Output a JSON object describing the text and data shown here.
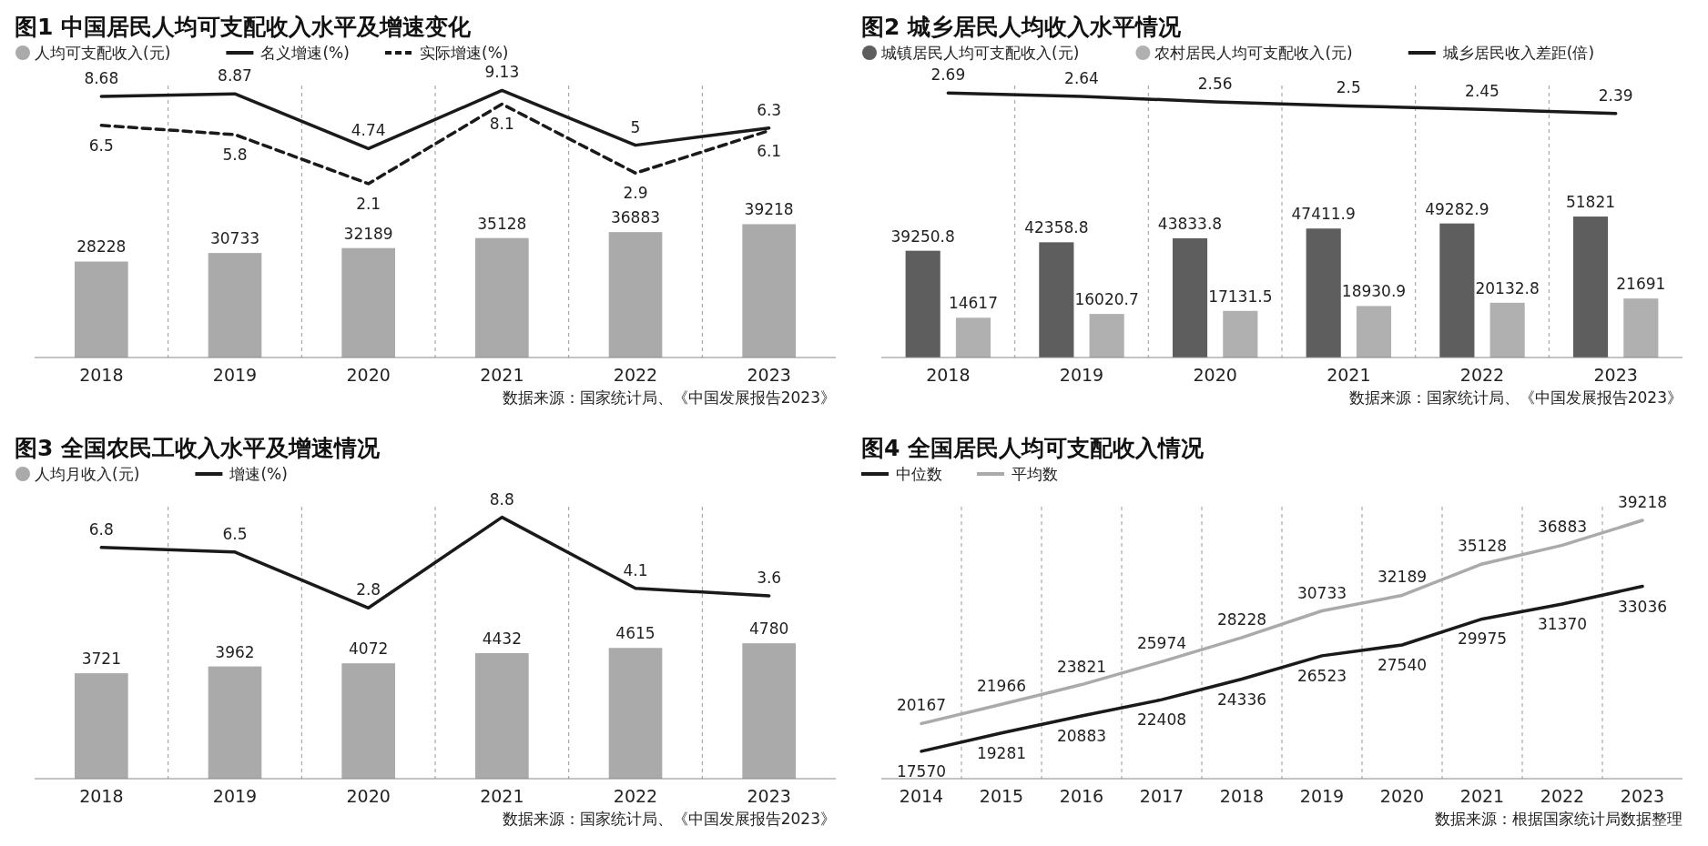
{
  "chart_data": [
    {
      "type": "bar",
      "title": "图1 中国居民人均可支配收入水平及增速变化",
      "categories": [
        "2018",
        "2019",
        "2020",
        "2021",
        "2022",
        "2023"
      ],
      "series": [
        {
          "name": "人均可支配收入(元)",
          "type": "bar",
          "color": "#aaaaaa",
          "values": [
            28228,
            30733,
            32189,
            35128,
            36883,
            39218
          ]
        },
        {
          "name": "名义增速(%)",
          "type": "line",
          "axis": "y2",
          "color": "#1a1a1a",
          "line_style": "solid",
          "values": [
            8.68,
            8.87,
            4.74,
            9.13,
            5,
            6.3
          ]
        },
        {
          "name": "实际增速(%)",
          "type": "line",
          "axis": "y2",
          "color": "#1a1a1a",
          "line_style": "dashed",
          "values": [
            6.5,
            5.8,
            2.1,
            8.1,
            2.9,
            6.1
          ]
        }
      ],
      "ylim": [
        0,
        80000
      ],
      "y2lim": [
        -11,
        9.5
      ],
      "tick_labels": "x",
      "data_labels": true,
      "grid": "x",
      "legend": "top left",
      "marker": "none",
      "annotations": [
        "数据来源：国家统计局、《中国发展报告2023》"
      ]
    },
    {
      "type": "bar",
      "title": "图2 城乡居民人均收入水平情况",
      "categories": [
        "2018",
        "2019",
        "2020",
        "2021",
        "2022",
        "2023"
      ],
      "series": [
        {
          "name": "城镇居民人均可支配收入(元)",
          "type": "bar",
          "color": "#5e5e5e",
          "values": [
            39250.8,
            42358.8,
            43833.8,
            47411.9,
            49282.9,
            51821
          ]
        },
        {
          "name": "农村居民人均可支配收入(元)",
          "type": "bar",
          "color": "#b0b0b0",
          "values": [
            14617,
            16020.7,
            17131.5,
            18930.9,
            20132.8,
            21691
          ]
        },
        {
          "name": "城乡居民收入差距(倍)",
          "type": "line",
          "axis": "y2",
          "color": "#1a1a1a",
          "line_style": "solid",
          "values": [
            2.69,
            2.64,
            2.56,
            2.5,
            2.45,
            2.39
          ]
        }
      ],
      "ylim": [
        0,
        100000
      ],
      "y2lim": [
        -1.2,
        2.8
      ],
      "tick_labels": "x",
      "data_labels": true,
      "grid": "x",
      "legend": "top left",
      "marker": "none",
      "annotations": [
        "数据来源：国家统计局、《中国发展报告2023》"
      ]
    },
    {
      "type": "bar",
      "title": "图3 全国农民工收入水平及增速情况",
      "categories": [
        "2018",
        "2019",
        "2020",
        "2021",
        "2022",
        "2023"
      ],
      "series": [
        {
          "name": "人均月收入(元)",
          "type": "bar",
          "color": "#aaaaaa",
          "values": [
            3721,
            3962,
            4072,
            4432,
            4615,
            4780
          ]
        },
        {
          "name": "增速(%)",
          "type": "line",
          "axis": "y2",
          "color": "#1a1a1a",
          "line_style": "solid",
          "values": [
            6.8,
            6.5,
            2.8,
            8.8,
            4.1,
            3.6
          ]
        }
      ],
      "ylim": [
        0,
        9600
      ],
      "y2lim": [
        -8.5,
        9.5
      ],
      "tick_labels": "x",
      "data_labels": true,
      "grid": "x",
      "legend": "top left",
      "marker": "none",
      "annotations": [
        "数据来源：国家统计局、《中国发展报告2023》"
      ]
    },
    {
      "type": "line",
      "title": "图4 全国居民人均可支配收入情况",
      "categories": [
        "2014",
        "2015",
        "2016",
        "2017",
        "2018",
        "2019",
        "2020",
        "2021",
        "2022",
        "2023"
      ],
      "series": [
        {
          "name": "中位数",
          "color": "#1a1a1a",
          "values": [
            17570,
            19281,
            20883,
            22408,
            24336,
            26523,
            27540,
            29975,
            31370,
            33036
          ]
        },
        {
          "name": "平均数",
          "color": "#aaaaaa",
          "values": [
            20167,
            21966,
            23821,
            25974,
            28228,
            30733,
            32189,
            35128,
            36883,
            39218
          ]
        }
      ],
      "ylim": [
        15000,
        40500
      ],
      "tick_labels": "x",
      "data_labels": true,
      "grid": "x",
      "legend": "top left",
      "marker": "none",
      "line_style": "solid",
      "annotations": [
        "数据来源：根据国家统计局数据整理"
      ]
    }
  ]
}
